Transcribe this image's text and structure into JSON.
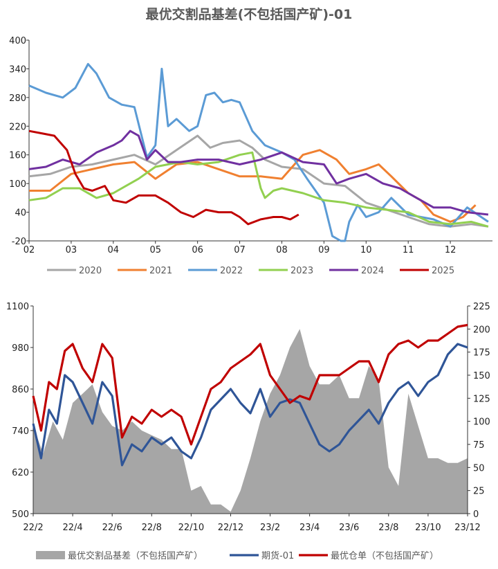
{
  "chart_data": [
    {
      "type": "line",
      "title": "最优交割品基差(不包括国产矿)-01",
      "ylim": [
        -20,
        400
      ],
      "yticks": [
        400,
        340,
        280,
        220,
        160,
        100,
        40,
        -20
      ],
      "xticks": [
        "02",
        "03",
        "04",
        "05",
        "06",
        "07",
        "08",
        "09",
        "10",
        "11",
        "12"
      ],
      "xlim": [
        2,
        13
      ],
      "series": [
        {
          "name": "2020",
          "color": "#a6a6a6",
          "x": [
            2,
            2.5,
            3,
            3.5,
            4,
            4.5,
            5,
            5.5,
            6,
            6.3,
            6.6,
            7,
            7.3,
            7.6,
            8,
            8.5,
            9,
            9.5,
            10,
            10.5,
            11,
            11.5,
            12,
            12.5,
            12.9
          ],
          "y": [
            115,
            120,
            135,
            140,
            150,
            160,
            140,
            170,
            200,
            175,
            185,
            190,
            175,
            150,
            135,
            130,
            100,
            95,
            60,
            45,
            30,
            15,
            10,
            15,
            10
          ]
        },
        {
          "name": "2021",
          "color": "#f08030",
          "x": [
            2,
            2.5,
            3,
            3.5,
            4,
            4.5,
            5,
            5.5,
            6,
            6.5,
            7,
            7.5,
            8,
            8.5,
            8.9,
            9.3,
            9.6,
            10,
            10.3,
            10.6,
            11,
            11.3,
            11.6,
            12,
            12.3,
            12.6
          ],
          "y": [
            85,
            85,
            120,
            130,
            140,
            145,
            110,
            140,
            145,
            130,
            115,
            115,
            110,
            160,
            170,
            150,
            120,
            130,
            140,
            115,
            80,
            65,
            35,
            20,
            30,
            55
          ]
        },
        {
          "name": "2022",
          "color": "#5b9bd5",
          "x": [
            2,
            2.4,
            2.8,
            3.1,
            3.4,
            3.6,
            3.9,
            4.2,
            4.5,
            4.8,
            5,
            5.15,
            5.3,
            5.5,
            5.8,
            6,
            6.2,
            6.4,
            6.6,
            6.8,
            7,
            7.3,
            7.6,
            8,
            8.3,
            8.6,
            9,
            9.2,
            9.4,
            9.5,
            9.6,
            9.8,
            10,
            10.3,
            10.6,
            11,
            11.3,
            11.6,
            12,
            12.4,
            12.9
          ],
          "y": [
            305,
            290,
            280,
            300,
            350,
            330,
            280,
            265,
            260,
            155,
            180,
            340,
            220,
            235,
            210,
            220,
            285,
            290,
            270,
            275,
            270,
            210,
            180,
            165,
            150,
            110,
            60,
            -10,
            -20,
            -20,
            20,
            55,
            30,
            40,
            70,
            35,
            30,
            25,
            10,
            50,
            20
          ]
        },
        {
          "name": "2023",
          "color": "#92d050",
          "x": [
            2,
            2.4,
            2.8,
            3.2,
            3.6,
            4,
            4.3,
            4.6,
            5,
            5.3,
            5.6,
            6,
            6.5,
            7,
            7.3,
            7.5,
            7.6,
            7.8,
            8,
            8.5,
            9,
            9.5,
            10,
            10.5,
            11,
            11.5,
            12,
            12.5,
            12.9
          ],
          "y": [
            65,
            70,
            90,
            90,
            70,
            80,
            95,
            110,
            135,
            140,
            145,
            140,
            145,
            160,
            165,
            90,
            70,
            85,
            90,
            80,
            65,
            60,
            50,
            45,
            40,
            20,
            15,
            20,
            10
          ]
        },
        {
          "name": "2024",
          "color": "#7030a0",
          "x": [
            2,
            2.4,
            2.8,
            3.2,
            3.6,
            4,
            4.2,
            4.4,
            4.6,
            4.8,
            5,
            5.3,
            5.6,
            6,
            6.5,
            7,
            7.5,
            8,
            8.5,
            9,
            9.3,
            9.6,
            10,
            10.4,
            10.8,
            11.2,
            11.6,
            12,
            12.4,
            12.9
          ],
          "y": [
            130,
            135,
            150,
            140,
            165,
            180,
            190,
            210,
            200,
            150,
            170,
            145,
            145,
            150,
            150,
            140,
            150,
            165,
            145,
            140,
            100,
            110,
            120,
            100,
            90,
            70,
            50,
            50,
            40,
            35
          ]
        },
        {
          "name": "2025",
          "color": "#c00000",
          "x": [
            2,
            2.3,
            2.6,
            2.9,
            3.1,
            3.3,
            3.5,
            3.8,
            4,
            4.3,
            4.6,
            5,
            5.3,
            5.6,
            5.9,
            6.2,
            6.5,
            6.8,
            7,
            7.2,
            7.5,
            7.8,
            8,
            8.2,
            8.4
          ],
          "y": [
            210,
            205,
            200,
            170,
            120,
            90,
            85,
            95,
            65,
            60,
            75,
            75,
            60,
            40,
            30,
            45,
            40,
            40,
            30,
            15,
            25,
            30,
            30,
            25,
            35
          ]
        }
      ]
    },
    {
      "type": "area+line",
      "xticks": [
        "22/2",
        "22/4",
        "22/6",
        "22/8",
        "22/10",
        "22/12",
        "23/2",
        "23/4",
        "23/6",
        "23/8",
        "23/10",
        "23/12"
      ],
      "xlim": [
        0,
        22
      ],
      "y_left": {
        "ylim": [
          500,
          1100
        ],
        "ticks": [
          1100,
          980,
          860,
          740,
          620,
          500
        ]
      },
      "y_right": {
        "ylim": [
          0,
          225
        ],
        "ticks": [
          225,
          200,
          175,
          150,
          125,
          100,
          75,
          50,
          25,
          0
        ]
      },
      "series": [
        {
          "name": "最优交割品基差（不包括国产矿）",
          "color": "#a6a6a6",
          "kind": "area",
          "axis": "right",
          "x": [
            0,
            0.5,
            1,
            1.5,
            2,
            2.5,
            3,
            3.5,
            4,
            4.5,
            5,
            5.5,
            6,
            6.5,
            7,
            7.5,
            8,
            8.5,
            9,
            9.5,
            10,
            10.5,
            11,
            11.5,
            12,
            12.5,
            13,
            13.5,
            14,
            14.5,
            15,
            15.5,
            16,
            16.5,
            17,
            17.5,
            18,
            18.5,
            19,
            19.5,
            20,
            20.5,
            21,
            21.5,
            22
          ],
          "y": [
            95,
            65,
            100,
            80,
            120,
            130,
            140,
            110,
            95,
            90,
            100,
            90,
            85,
            80,
            70,
            70,
            25,
            30,
            10,
            10,
            2,
            25,
            60,
            100,
            130,
            150,
            180,
            200,
            160,
            140,
            140,
            150,
            125,
            125,
            160,
            145,
            50,
            30,
            130,
            95,
            60,
            60,
            55,
            55,
            60
          ]
        },
        {
          "name": "期货-01",
          "color": "#2f5597",
          "kind": "line",
          "axis": "left",
          "x": [
            0,
            0.4,
            0.8,
            1.2,
            1.6,
            2,
            2.5,
            3,
            3.5,
            4,
            4.5,
            5,
            5.5,
            6,
            6.5,
            7,
            7.5,
            8,
            8.5,
            9,
            9.5,
            10,
            10.5,
            11,
            11.5,
            12,
            12.5,
            13,
            13.5,
            14,
            14.5,
            15,
            15.5,
            16,
            16.5,
            17,
            17.5,
            18,
            18.5,
            19,
            19.5,
            20,
            20.5,
            21,
            21.5,
            22
          ],
          "y": [
            760,
            660,
            800,
            760,
            900,
            880,
            820,
            760,
            880,
            840,
            640,
            700,
            680,
            720,
            700,
            720,
            680,
            660,
            720,
            800,
            830,
            860,
            820,
            790,
            860,
            780,
            820,
            830,
            820,
            760,
            700,
            680,
            700,
            740,
            770,
            800,
            760,
            820,
            860,
            880,
            840,
            880,
            900,
            960,
            990,
            980
          ]
        },
        {
          "name": "最优仓单（不包括国产矿）",
          "color": "#c00000",
          "kind": "line",
          "axis": "left",
          "x": [
            0,
            0.4,
            0.8,
            1.2,
            1.6,
            2,
            2.5,
            3,
            3.5,
            4,
            4.5,
            5,
            5.5,
            6,
            6.5,
            7,
            7.5,
            8,
            8.5,
            9,
            9.5,
            10,
            10.5,
            11,
            11.5,
            12,
            12.5,
            13,
            13.5,
            14,
            14.5,
            15,
            15.5,
            16,
            16.5,
            17,
            17.5,
            18,
            18.5,
            19,
            19.5,
            20,
            20.5,
            21,
            21.5,
            22
          ],
          "y": [
            840,
            740,
            880,
            860,
            970,
            990,
            920,
            880,
            990,
            950,
            720,
            780,
            760,
            800,
            780,
            800,
            780,
            700,
            780,
            860,
            880,
            920,
            940,
            960,
            990,
            900,
            860,
            820,
            840,
            830,
            900,
            900,
            900,
            920,
            940,
            940,
            880,
            960,
            990,
            1000,
            980,
            1000,
            1000,
            1020,
            1040,
            1045
          ]
        }
      ]
    }
  ]
}
